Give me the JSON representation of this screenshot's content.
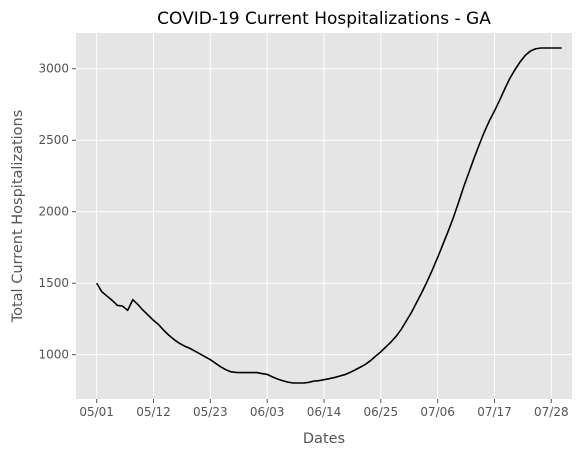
{
  "chart_data": {
    "type": "line",
    "title": "COVID-19 Current Hospitalizations - GA",
    "xlabel": "Dates",
    "ylabel": "Total Current Hospitalizations",
    "x_tick_labels": [
      "05/01",
      "05/12",
      "05/23",
      "06/03",
      "06/14",
      "06/25",
      "07/06",
      "07/17",
      "07/28"
    ],
    "x_tick_day_index": [
      0,
      11,
      22,
      33,
      44,
      55,
      66,
      77,
      88
    ],
    "y_ticks": [
      1000,
      1500,
      2000,
      2500,
      3000
    ],
    "xlim": [
      -4,
      92
    ],
    "ylim": [
      690,
      3250
    ],
    "grid": true,
    "background": "#e5e5e5",
    "grid_color": "#ffffff",
    "line_color": "#000000",
    "series": [
      {
        "x": [
          0,
          1,
          2,
          3,
          4,
          5,
          6,
          7,
          8,
          9,
          10,
          11,
          12,
          13,
          14,
          15,
          16,
          17,
          18,
          19,
          20,
          21,
          22,
          23,
          24,
          25,
          26,
          27,
          28,
          29,
          30,
          31,
          32,
          33,
          34,
          35,
          36,
          37,
          38,
          39,
          40,
          41,
          42,
          43,
          44,
          45,
          46,
          47,
          48,
          49,
          50,
          51,
          52,
          53,
          54,
          55,
          56,
          57,
          58,
          59,
          60,
          61,
          62,
          63,
          64,
          65,
          66,
          67,
          68,
          69,
          70,
          71,
          72,
          73,
          74,
          75,
          76,
          77,
          78,
          79,
          80,
          81,
          82,
          83,
          84,
          85,
          86,
          87,
          88,
          89,
          90
        ],
        "y": [
          1500,
          1440,
          1410,
          1380,
          1345,
          1340,
          1310,
          1385,
          1350,
          1310,
          1275,
          1240,
          1210,
          1170,
          1135,
          1105,
          1080,
          1060,
          1045,
          1025,
          1005,
          985,
          965,
          940,
          915,
          895,
          880,
          876,
          875,
          875,
          875,
          875,
          868,
          862,
          845,
          830,
          818,
          808,
          802,
          802,
          802,
          806,
          815,
          818,
          825,
          832,
          840,
          850,
          860,
          875,
          893,
          912,
          932,
          958,
          990,
          1020,
          1055,
          1090,
          1130,
          1180,
          1240,
          1300,
          1370,
          1440,
          1515,
          1595,
          1680,
          1770,
          1860,
          1955,
          2060,
          2170,
          2270,
          2370,
          2465,
          2555,
          2635,
          2705,
          2780,
          2860,
          2935,
          2995,
          3050,
          3095,
          3125,
          3140,
          3145,
          3145,
          3145,
          3145,
          3145
        ]
      }
    ]
  }
}
